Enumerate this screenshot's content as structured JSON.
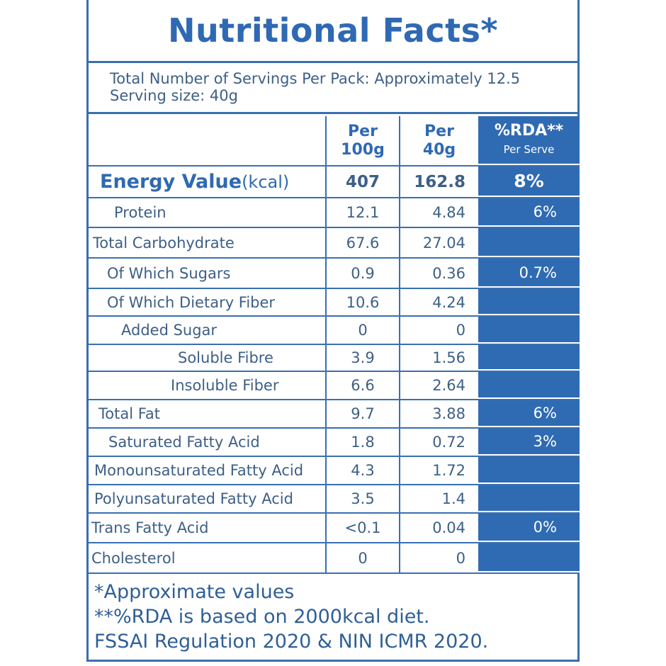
{
  "title": "Nutritional Facts*",
  "servings_line": "Total Number of Servings Per Pack: Approximately 12.5",
  "serving_size_line": "Serving size: 40g",
  "header": {
    "col1_a": "Per",
    "col1_b": "100g",
    "col2_a": "Per",
    "col2_b": "40g",
    "col3_a": "%RDA**",
    "col3_b": "Per Serve"
  },
  "energy": {
    "label": "Energy Value",
    "unit": "(kcal)",
    "per100": "407",
    "per40": "162.8",
    "rda": "8%"
  },
  "rows": [
    {
      "label": "Protein",
      "per100": "12.1",
      "per40": "4.84",
      "rda": "6%"
    },
    {
      "label": "Total Carbohydrate",
      "per100": "67.6",
      "per40": "27.04",
      "rda": ""
    },
    {
      "label": "Of Which Sugars",
      "per100": "0.9",
      "per40": "0.36",
      "rda": "0.7%"
    },
    {
      "label": "Of Which Dietary Fiber",
      "per100": "10.6",
      "per40": "4.24",
      "rda": ""
    },
    {
      "label": "Added Sugar",
      "per100": "0",
      "per40": "0",
      "rda": ""
    },
    {
      "label": "Soluble Fibre",
      "per100": "3.9",
      "per40": "1.56",
      "rda": ""
    },
    {
      "label": "Insoluble Fiber",
      "per100": "6.6",
      "per40": "2.64",
      "rda": ""
    },
    {
      "label": "Total Fat",
      "per100": "9.7",
      "per40": "3.88",
      "rda": "6%"
    },
    {
      "label": "Saturated Fatty Acid",
      "per100": "1.8",
      "per40": "0.72",
      "rda": "3%"
    },
    {
      "label": "Monounsaturated Fatty Acid",
      "per100": "4.3",
      "per40": "1.72",
      "rda": ""
    },
    {
      "label": "Polyunsaturated Fatty Acid",
      "per100": "3.5",
      "per40": "1.4",
      "rda": ""
    },
    {
      "label": "Trans Fatty Acid",
      "per100": "<0.1",
      "per40": "0.04",
      "rda": "0%"
    },
    {
      "label": "Cholesterol",
      "per100": "0",
      "per40": "0",
      "rda": ""
    }
  ],
  "footnotes": [
    "*Approximate values",
    "**%RDA is based on 2000kcal diet.",
    "FSSAI Regulation 2020 & NIN ICMR 2020."
  ],
  "colors": {
    "brand_blue": "#2f6bb3",
    "text": "#3d5f86"
  }
}
